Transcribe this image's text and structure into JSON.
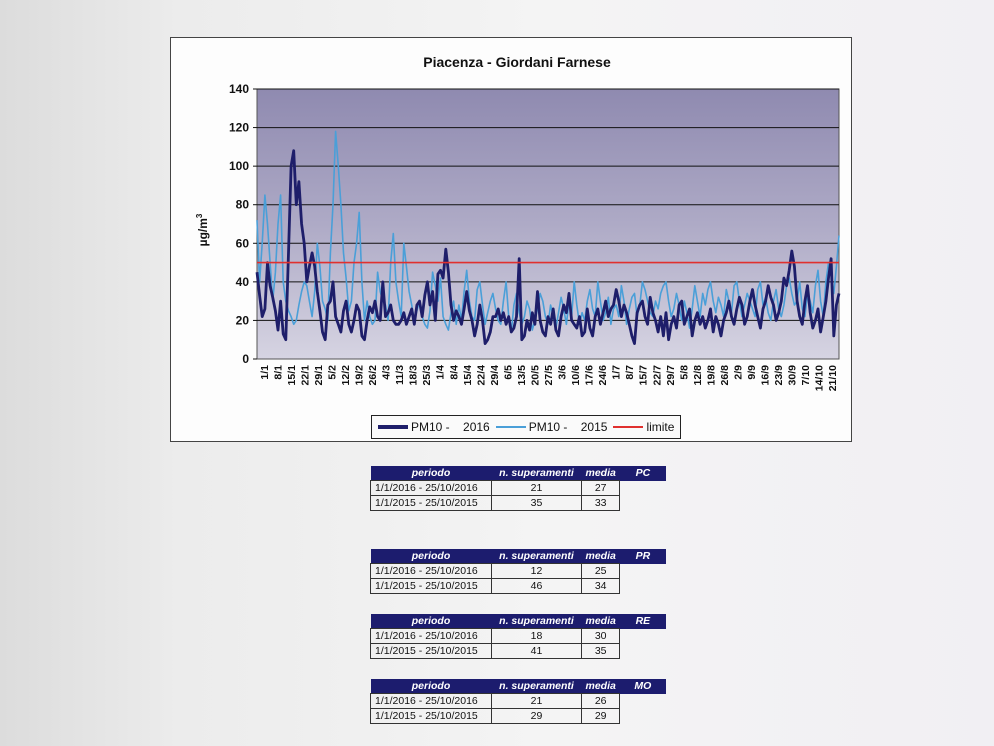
{
  "chart_data": {
    "type": "line",
    "title": "Piacenza - Giordani Farnese",
    "ylabel": "µg/m",
    "ylabel_sup": "3",
    "ylim": [
      0,
      140
    ],
    "yticks": [
      0,
      20,
      40,
      60,
      80,
      100,
      120,
      140
    ],
    "grid": true,
    "legend_position": "bottom",
    "x_tick_labels": [
      "1/1",
      "8/1",
      "15/1",
      "22/1",
      "29/1",
      "5/2",
      "12/2",
      "19/2",
      "26/2",
      "4/3",
      "11/3",
      "18/3",
      "25/3",
      "1/4",
      "8/4",
      "15/4",
      "22/4",
      "29/4",
      "6/5",
      "13/5",
      "20/5",
      "27/5",
      "3/6",
      "10/6",
      "17/6",
      "24/6",
      "1/7",
      "8/7",
      "15/7",
      "22/7",
      "29/7",
      "5/8",
      "12/8",
      "19/8",
      "26/8",
      "2/9",
      "9/9",
      "16/9",
      "23/9",
      "30/9",
      "7/10",
      "14/10",
      "21/10"
    ],
    "series": [
      {
        "name": "PM10 -    2016",
        "color": "#1e1e6a",
        "values": [
          45,
          33,
          22,
          26,
          50,
          38,
          32,
          25,
          15,
          30,
          13,
          10,
          55,
          100,
          108,
          80,
          92,
          70,
          60,
          40,
          48,
          55,
          48,
          35,
          25,
          14,
          10,
          28,
          30,
          40,
          22,
          18,
          14,
          25,
          30,
          18,
          14,
          20,
          28,
          25,
          12,
          10,
          20,
          27,
          24,
          30,
          22,
          20,
          40,
          22,
          24,
          28,
          20,
          18,
          18,
          20,
          24,
          18,
          22,
          26,
          18,
          28,
          30,
          22,
          33,
          40,
          28,
          35,
          20,
          44,
          46,
          42,
          57,
          45,
          28,
          20,
          25,
          22,
          18,
          26,
          35,
          25,
          20,
          12,
          18,
          28,
          20,
          8,
          10,
          14,
          22,
          22,
          26,
          20,
          24,
          18,
          22,
          14,
          16,
          22,
          52,
          10,
          12,
          20,
          15,
          24,
          18,
          35,
          20,
          14,
          12,
          22,
          18,
          26,
          15,
          12,
          22,
          28,
          24,
          34,
          20,
          18,
          16,
          22,
          12,
          14,
          26,
          16,
          12,
          22,
          26,
          18,
          24,
          30,
          22,
          26,
          28,
          36,
          30,
          22,
          28,
          24,
          18,
          12,
          8,
          24,
          28,
          30,
          22,
          18,
          32,
          24,
          20,
          14,
          22,
          12,
          24,
          10,
          18,
          22,
          16,
          28,
          30,
          18,
          22,
          26,
          12,
          20,
          24,
          18,
          22,
          16,
          20,
          26,
          14,
          22,
          18,
          12,
          20,
          24,
          30,
          22,
          18,
          26,
          32,
          28,
          18,
          22,
          30,
          36,
          28,
          22,
          16,
          26,
          30,
          38,
          32,
          28,
          20,
          24,
          30,
          42,
          38,
          46,
          56,
          48,
          30,
          22,
          18,
          30,
          38,
          24,
          16,
          20,
          26,
          14,
          22,
          30,
          42,
          52,
          12,
          28,
          34
        ]
      },
      {
        "name": "PM10 -    2015",
        "color": "#4a9fd8",
        "values": [
          72,
          40,
          60,
          85,
          70,
          50,
          30,
          45,
          70,
          85,
          40,
          30,
          25,
          22,
          18,
          20,
          28,
          35,
          40,
          38,
          30,
          22,
          35,
          60,
          48,
          30,
          26,
          20,
          55,
          80,
          118,
          100,
          80,
          55,
          42,
          25,
          30,
          50,
          60,
          76,
          40,
          20,
          30,
          22,
          18,
          20,
          45,
          35,
          30,
          28,
          20,
          50,
          65,
          40,
          30,
          22,
          60,
          48,
          35,
          28,
          20,
          25,
          30,
          22,
          18,
          16,
          25,
          45,
          38,
          30,
          42,
          22,
          18,
          15,
          24,
          30,
          18,
          28,
          20,
          35,
          46,
          30,
          22,
          20,
          36,
          40,
          28,
          18,
          24,
          30,
          34,
          26,
          20,
          18,
          30,
          40,
          22,
          14,
          28,
          34,
          24,
          18,
          22,
          30,
          26,
          15,
          20,
          26,
          34,
          30,
          22,
          18,
          28,
          22,
          16,
          24,
          32,
          26,
          18,
          30,
          22,
          40,
          28,
          18,
          24,
          20,
          30,
          36,
          26,
          22,
          40,
          30,
          20,
          24,
          32,
          18,
          26,
          28,
          22,
          38,
          30,
          18,
          26,
          32,
          34,
          22,
          28,
          40,
          36,
          30,
          24,
          22,
          30,
          26,
          34,
          38,
          40,
          30,
          22,
          26,
          34,
          28,
          20,
          30,
          24,
          16,
          26,
          38,
          30,
          22,
          34,
          28,
          36,
          40,
          30,
          24,
          32,
          28,
          22,
          36,
          30,
          24,
          38,
          40,
          30,
          22,
          28,
          34,
          30,
          26,
          22,
          36,
          40,
          28,
          32,
          24,
          20,
          30,
          36,
          26,
          22,
          28,
          38,
          42,
          34,
          28,
          30,
          40,
          26,
          22,
          34,
          30,
          24,
          38,
          46,
          30,
          22,
          40,
          50,
          44,
          34,
          48,
          64
        ]
      },
      {
        "name": "limite",
        "color": "#e0302e",
        "values": [
          50,
          50
        ]
      }
    ]
  },
  "tables": [
    {
      "code": "PC",
      "headers": {
        "periodo": "periodo",
        "superamenti": "n. superamenti",
        "media": "media"
      },
      "rows": [
        {
          "periodo": "1/1/2016 - 25/10/2016",
          "superamenti": "21",
          "media": "27"
        },
        {
          "periodo": "1/1/2015 - 25/10/2015",
          "superamenti": "35",
          "media": "33"
        }
      ]
    },
    {
      "code": "PR",
      "headers": {
        "periodo": "periodo",
        "superamenti": "n. superamenti",
        "media": "media"
      },
      "rows": [
        {
          "periodo": "1/1/2016 - 25/10/2016",
          "superamenti": "12",
          "media": "25"
        },
        {
          "periodo": "1/1/2015 - 25/10/2015",
          "superamenti": "46",
          "media": "34"
        }
      ]
    },
    {
      "code": "RE",
      "headers": {
        "periodo": "periodo",
        "superamenti": "n. superamenti",
        "media": "media"
      },
      "rows": [
        {
          "periodo": "1/1/2016 - 25/10/2016",
          "superamenti": "18",
          "media": "30"
        },
        {
          "periodo": "1/1/2015 - 25/10/2015",
          "superamenti": "41",
          "media": "35"
        }
      ]
    },
    {
      "code": "MO",
      "headers": {
        "periodo": "periodo",
        "superamenti": "n. superamenti",
        "media": "media"
      },
      "rows": [
        {
          "periodo": "1/1/2016 - 25/10/2016",
          "superamenti": "21",
          "media": "26"
        },
        {
          "periodo": "1/1/2015 - 25/10/2015",
          "superamenti": "29",
          "media": "29"
        }
      ]
    }
  ]
}
